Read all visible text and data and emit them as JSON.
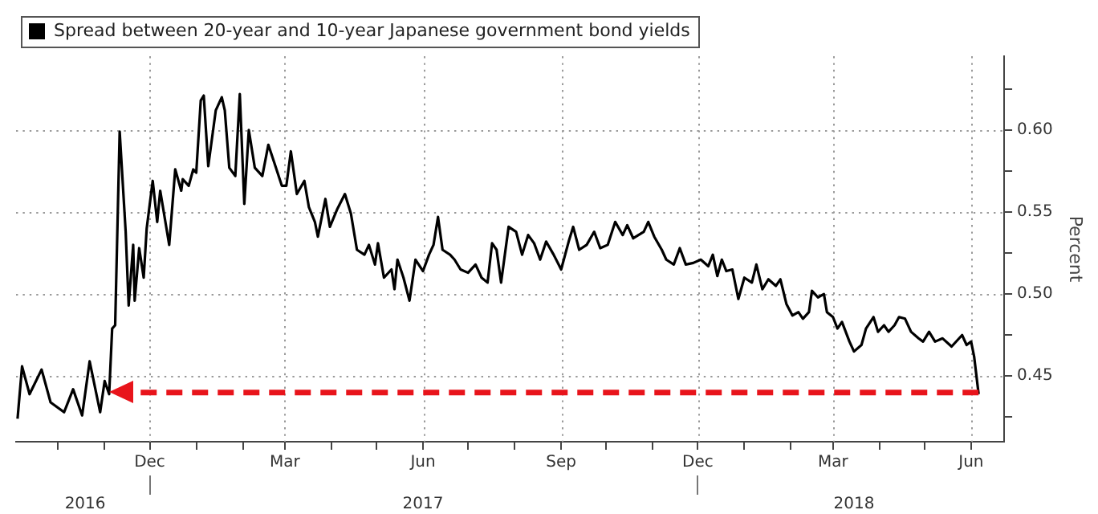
{
  "chart_data": {
    "type": "line",
    "ylabel": "Percent",
    "legend": "top left",
    "grid": true,
    "xlim": [
      "2016-09-03",
      "2018-06-23"
    ],
    "xticks": [
      {
        "value": "2016-10-01",
        "label": null
      },
      {
        "value": "2016-11-01",
        "label": null
      },
      {
        "value": "2016-12-01",
        "label": "Dec"
      },
      {
        "value": "2017-01-01",
        "label": null
      },
      {
        "value": "2017-02-01",
        "label": null
      },
      {
        "value": "2017-03-01",
        "label": "Mar"
      },
      {
        "value": "2017-04-01",
        "label": null
      },
      {
        "value": "2017-05-01",
        "label": null
      },
      {
        "value": "2017-06-01",
        "label": "Jun"
      },
      {
        "value": "2017-07-01",
        "label": null
      },
      {
        "value": "2017-08-01",
        "label": null
      },
      {
        "value": "2017-09-01",
        "label": "Sep"
      },
      {
        "value": "2017-10-01",
        "label": null
      },
      {
        "value": "2017-11-01",
        "label": null
      },
      {
        "value": "2017-12-01",
        "label": "Dec"
      },
      {
        "value": "2018-01-01",
        "label": null
      },
      {
        "value": "2018-02-01",
        "label": null
      },
      {
        "value": "2018-03-01",
        "label": "Mar"
      },
      {
        "value": "2018-04-01",
        "label": null
      },
      {
        "value": "2018-05-01",
        "label": null
      },
      {
        "value": "2018-06-01",
        "label": "Jun"
      }
    ],
    "x2lim": [
      "2016-09-03",
      "2018-06-23"
    ],
    "x2ticks": [
      {
        "value": "2016-10-19",
        "label": "2016"
      },
      {
        "value": "2016-12-01",
        "label": null
      },
      {
        "value": "2017-06-01",
        "label": "2017"
      },
      {
        "value": "2017-12-01",
        "label": null
      },
      {
        "value": "2018-03-15",
        "label": "2018"
      }
    ],
    "ylim": [
      0.41,
      0.645
    ],
    "yticks": [
      {
        "value": 0.425,
        "label": null
      },
      {
        "value": 0.45,
        "label": "0.45"
      },
      {
        "value": 0.475,
        "label": null
      },
      {
        "value": 0.5,
        "label": "0.50"
      },
      {
        "value": 0.525,
        "label": null
      },
      {
        "value": 0.55,
        "label": "0.55"
      },
      {
        "value": 0.575,
        "label": null
      },
      {
        "value": 0.6,
        "label": "0.60"
      },
      {
        "value": 0.625,
        "label": null
      }
    ],
    "ref_lines": [
      {
        "axis": "y",
        "value": 0.44,
        "color": "#e8141b",
        "line_style": "dashed"
      }
    ],
    "x": [
      "2016-09-04",
      "2016-09-07",
      "2016-09-12",
      "2016-09-20",
      "2016-09-26",
      "2016-10-05",
      "2016-10-11",
      "2016-10-17",
      "2016-10-22",
      "2016-10-29",
      "2016-11-01",
      "2016-11-04",
      "2016-11-06",
      "2016-11-08",
      "2016-11-11",
      "2016-11-15",
      "2016-11-17",
      "2016-11-20",
      "2016-11-21",
      "2016-11-24",
      "2016-11-27",
      "2016-11-29",
      "2016-12-03",
      "2016-12-06",
      "2016-12-08",
      "2016-12-14",
      "2016-12-18",
      "2016-12-22",
      "2016-12-23",
      "2016-12-27",
      "2016-12-30",
      "2017-01-01",
      "2017-01-04",
      "2017-01-06",
      "2017-01-09",
      "2017-01-14",
      "2017-01-18",
      "2017-01-20",
      "2017-01-23",
      "2017-01-27",
      "2017-01-30",
      "2017-02-02",
      "2017-02-05",
      "2017-02-09",
      "2017-02-14",
      "2017-02-18",
      "2017-02-22",
      "2017-02-27",
      "2017-03-02",
      "2017-03-05",
      "2017-03-09",
      "2017-03-14",
      "2017-03-17",
      "2017-03-21",
      "2017-03-23",
      "2017-03-28",
      "2017-03-31",
      "2017-04-05",
      "2017-04-10",
      "2017-04-14",
      "2017-04-18",
      "2017-04-23",
      "2017-04-26",
      "2017-04-30",
      "2017-05-02",
      "2017-05-06",
      "2017-05-11",
      "2017-05-13",
      "2017-05-15",
      "2017-05-19",
      "2017-05-23",
      "2017-05-27",
      "2017-06-01",
      "2017-06-05",
      "2017-06-08",
      "2017-06-11",
      "2017-06-14",
      "2017-06-19",
      "2017-06-22",
      "2017-06-26",
      "2017-07-01",
      "2017-07-06",
      "2017-07-10",
      "2017-07-14",
      "2017-07-17",
      "2017-07-20",
      "2017-07-23",
      "2017-07-28",
      "2017-08-02",
      "2017-08-06",
      "2017-08-10",
      "2017-08-14",
      "2017-08-18",
      "2017-08-22",
      "2017-08-27",
      "2017-09-01",
      "2017-09-06",
      "2017-09-09",
      "2017-09-13",
      "2017-09-18",
      "2017-09-23",
      "2017-09-27",
      "2017-10-02",
      "2017-10-07",
      "2017-10-12",
      "2017-10-15",
      "2017-10-19",
      "2017-10-26",
      "2017-10-29",
      "2017-11-02",
      "2017-11-07",
      "2017-11-10",
      "2017-11-15",
      "2017-11-19",
      "2017-11-23",
      "2017-11-28",
      "2017-12-03",
      "2017-12-08",
      "2017-12-11",
      "2017-12-14",
      "2017-12-17",
      "2017-12-20",
      "2017-12-24",
      "2017-12-28",
      "2018-01-01",
      "2018-01-06",
      "2018-01-09",
      "2018-01-13",
      "2018-01-17",
      "2018-01-22",
      "2018-01-25",
      "2018-01-29",
      "2018-02-02",
      "2018-02-06",
      "2018-02-09",
      "2018-02-13",
      "2018-02-15",
      "2018-02-19",
      "2018-02-23",
      "2018-02-25",
      "2018-03-01",
      "2018-03-04",
      "2018-03-07",
      "2018-03-12",
      "2018-03-15",
      "2018-03-20",
      "2018-03-23",
      "2018-03-28",
      "2018-03-31",
      "2018-04-04",
      "2018-04-07",
      "2018-04-11",
      "2018-04-14",
      "2018-04-18",
      "2018-04-22",
      "2018-04-27",
      "2018-04-30",
      "2018-05-04",
      "2018-05-08",
      "2018-05-13",
      "2018-05-19",
      "2018-05-26",
      "2018-05-29",
      "2018-06-01",
      "2018-06-03",
      "2018-06-06"
    ],
    "series": [
      {
        "name": "Spread between 20-year and 10-year Japanese government bond yields",
        "color": "#000000",
        "values": [
          0.424,
          0.456,
          0.439,
          0.454,
          0.434,
          0.428,
          0.442,
          0.426,
          0.459,
          0.428,
          0.447,
          0.439,
          0.479,
          0.481,
          0.599,
          0.538,
          0.493,
          0.53,
          0.496,
          0.528,
          0.51,
          0.54,
          0.569,
          0.544,
          0.563,
          0.53,
          0.576,
          0.563,
          0.57,
          0.566,
          0.576,
          0.574,
          0.618,
          0.621,
          0.578,
          0.612,
          0.62,
          0.612,
          0.577,
          0.572,
          0.622,
          0.555,
          0.6,
          0.577,
          0.572,
          0.591,
          0.58,
          0.566,
          0.566,
          0.587,
          0.561,
          0.569,
          0.553,
          0.544,
          0.535,
          0.558,
          0.541,
          0.552,
          0.561,
          0.549,
          0.527,
          0.524,
          0.53,
          0.518,
          0.531,
          0.51,
          0.515,
          0.503,
          0.521,
          0.51,
          0.496,
          0.521,
          0.514,
          0.524,
          0.53,
          0.547,
          0.527,
          0.524,
          0.521,
          0.515,
          0.513,
          0.518,
          0.51,
          0.507,
          0.531,
          0.527,
          0.507,
          0.541,
          0.538,
          0.524,
          0.536,
          0.531,
          0.521,
          0.532,
          0.524,
          0.515,
          0.532,
          0.541,
          0.527,
          0.53,
          0.538,
          0.528,
          0.53,
          0.544,
          0.536,
          0.542,
          0.534,
          0.538,
          0.544,
          0.535,
          0.527,
          0.521,
          0.518,
          0.528,
          0.518,
          0.519,
          0.521,
          0.517,
          0.524,
          0.511,
          0.521,
          0.514,
          0.515,
          0.497,
          0.51,
          0.507,
          0.518,
          0.503,
          0.509,
          0.505,
          0.509,
          0.494,
          0.487,
          0.489,
          0.485,
          0.489,
          0.502,
          0.498,
          0.5,
          0.489,
          0.486,
          0.479,
          0.483,
          0.471,
          0.465,
          0.469,
          0.479,
          0.486,
          0.477,
          0.481,
          0.477,
          0.481,
          0.486,
          0.485,
          0.477,
          0.473,
          0.471,
          0.477,
          0.471,
          0.473,
          0.468,
          0.475,
          0.469,
          0.471,
          0.462,
          0.439
        ]
      }
    ]
  }
}
